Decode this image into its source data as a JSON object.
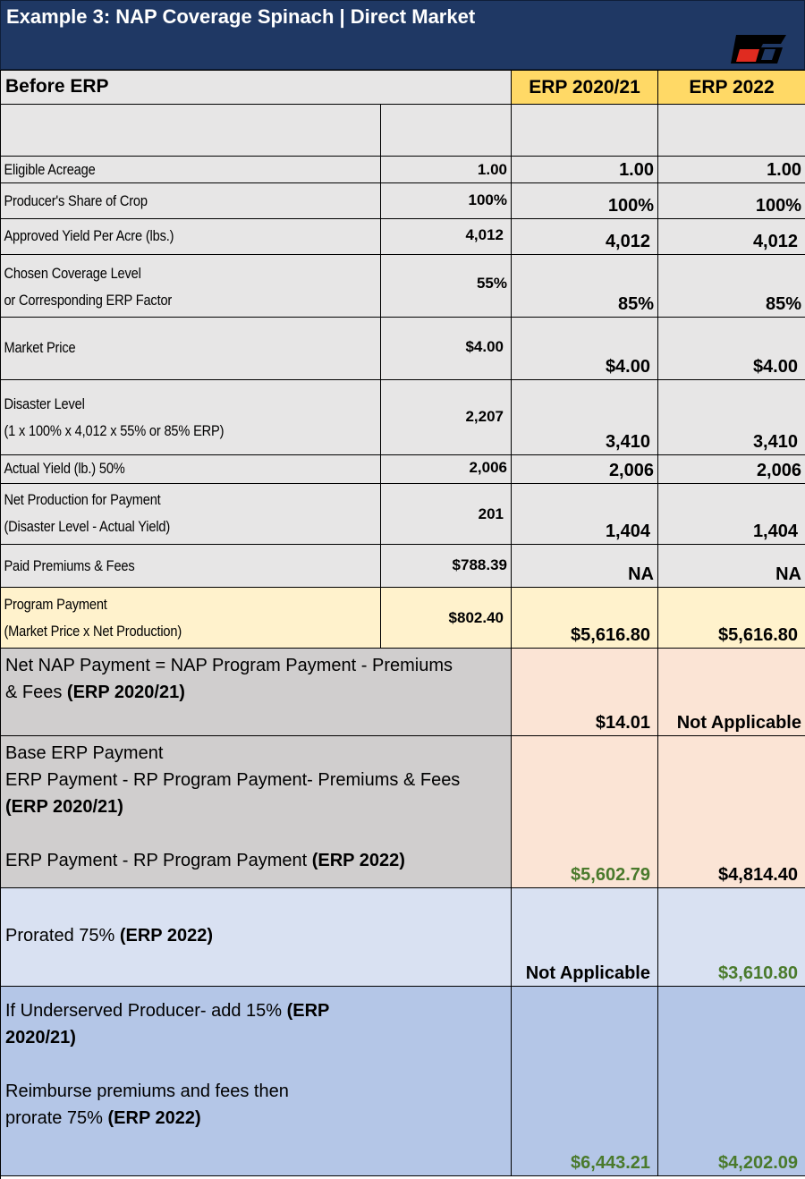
{
  "header": {
    "title": "Example 3: NAP Coverage Spinach  |  Direct Market",
    "logo_icon": "farm-bureau-logo",
    "bg_color": "#1f3864"
  },
  "columns": {
    "before": "Before ERP",
    "erp2021": "ERP 2020/21",
    "erp2022": "ERP 2022"
  },
  "rows": [
    {
      "label_lines": [
        "Eligible Acreage"
      ],
      "before": "1.00",
      "erp2021": "1.00",
      "erp2022": "1.00"
    },
    {
      "label_lines": [
        "Producer's Share of Crop"
      ],
      "before": "100%",
      "erp2021": "100%",
      "erp2022": "100%"
    },
    {
      "label_lines": [
        "Approved Yield Per Acre (lbs.)"
      ],
      "before": "4,012",
      "erp2021": "4,012",
      "erp2022": "4,012"
    },
    {
      "label_lines": [
        "Chosen Coverage Level",
        "or Corresponding ERP Factor"
      ],
      "before": "55%",
      "erp2021": "85%",
      "erp2022": "85%"
    },
    {
      "label_lines": [
        "Market Price"
      ],
      "before": "$4.00",
      "erp2021": "$4.00",
      "erp2022": "$4.00"
    },
    {
      "label_lines": [
        "Disaster Level",
        "(1 x 100% x 4,012 x 55% or 85% ERP)"
      ],
      "before": "2,207",
      "erp2021": "3,410",
      "erp2022": "3,410"
    },
    {
      "label_lines": [
        "Actual Yield (lb.) 50%"
      ],
      "before": "2,006",
      "erp2021": "2,006",
      "erp2022": "2,006"
    },
    {
      "label_lines": [
        "Net Production for Payment",
        "(Disaster Level - Actual Yield)"
      ],
      "before": "201",
      "erp2021": "1,404",
      "erp2022": "1,404"
    },
    {
      "label_lines": [
        "Paid Premiums & Fees"
      ],
      "before": "$788.39",
      "erp2021": "NA",
      "erp2022": "NA"
    },
    {
      "label_lines": [
        " Program Payment",
        "(Market Price x Net Production)"
      ],
      "before": "$802.40",
      "erp2021": "$5,616.80",
      "erp2022": "$5,616.80"
    }
  ],
  "net_nap": {
    "line1": "Net NAP Payment = NAP Program Payment - Premiums",
    "line2_plain": "& Fees ",
    "line2_bold": "(ERP 2020/21)",
    "erp2021": "$14.01",
    "erp2022": "Not Applicable"
  },
  "base_erp": {
    "line1": "Base ERP Payment",
    "line2": "ERP Payment - RP Program Payment- Premiums & Fees",
    "line3_bold": "(ERP 2020/21)",
    "line4_plain": "ERP Payment - RP Program Payment ",
    "line4_bold": "(ERP 2022)",
    "erp2021": "$5,602.79",
    "erp2022": "$4,814.40"
  },
  "prorated": {
    "plain": "Prorated 75% ",
    "bold": "(ERP 2022)",
    "erp2021": "Not Applicable",
    "erp2022": "$3,610.80"
  },
  "underserved": {
    "line1_plain": "If Underserved Producer- add 15% ",
    "line1_bold": "(ERP",
    "line2_bold": "2020/21)",
    "line3": "Reimburse premiums and fees then",
    "line4_plain": "prorate 75% ",
    "line4_bold": "(ERP 2022)",
    "erp2021": "$6,443.21",
    "erp2022": "$4,202.09"
  },
  "colors": {
    "green_value": "#4a7a2c",
    "gold_header": "#ffd966",
    "cream_row": "#fff2cc",
    "pink_cell": "#fbe4d5",
    "light_blue": "#d9e1f2",
    "medium_blue": "#b4c6e7"
  }
}
